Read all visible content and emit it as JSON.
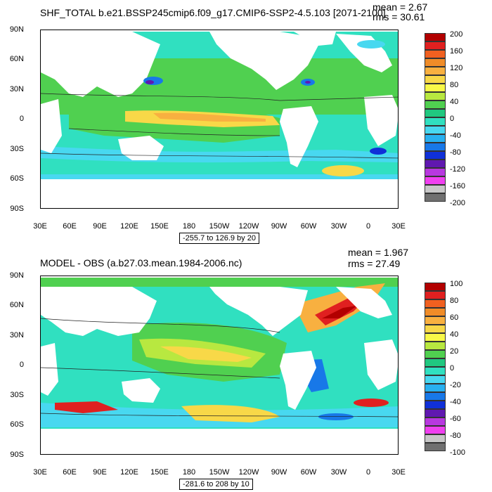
{
  "panels": {
    "top": {
      "title": "SHF_TOTAL b.e21.BSSP245cmip6.f09_g17.CMIP6-SSP2-4.5.103 [2071-2100]",
      "mean_text": "mean = 2.67",
      "rms_text": "rms = 30.61",
      "range_text": "-255.7 to 126.9 by 20",
      "colorbar": {
        "labels": [
          "200",
          "160",
          "120",
          "80",
          "40",
          "0",
          "-40",
          "-80",
          "-120",
          "-160",
          "-200"
        ],
        "colors": [
          "#b20000",
          "#e02020",
          "#f06020",
          "#f08c28",
          "#f8b040",
          "#f8d848",
          "#f8f848",
          "#b8e840",
          "#50d050",
          "#20c880",
          "#30e0c0",
          "#48d8f0",
          "#28b0f0",
          "#1878e8",
          "#1030d8",
          "#6018b0",
          "#b838e0",
          "#f040f0",
          "#c8c8c8",
          "#707070"
        ]
      }
    },
    "bottom": {
      "title": "MODEL - OBS (a.b27.03.mean.1984-2006.nc)",
      "mean_text": "mean = 1.967",
      "rms_text": "rms = 27.49",
      "range_text": "-281.6 to 208 by 10",
      "colorbar": {
        "labels": [
          "100",
          "80",
          "60",
          "40",
          "20",
          "0",
          "-20",
          "-40",
          "-60",
          "-80",
          "-100"
        ],
        "colors": [
          "#b20000",
          "#e02020",
          "#f06020",
          "#f08c28",
          "#f8b040",
          "#f8d848",
          "#f8f848",
          "#b8e840",
          "#50d050",
          "#20c880",
          "#30e0c0",
          "#48d8f0",
          "#28b0f0",
          "#1878e8",
          "#1030d8",
          "#6018b0",
          "#b838e0",
          "#f040f0",
          "#c8c8c8",
          "#707070"
        ]
      }
    }
  },
  "axes": {
    "y_ticks": [
      "90N",
      "60N",
      "30N",
      "0",
      "30S",
      "60S",
      "90S"
    ],
    "x_ticks": [
      "30E",
      "60E",
      "90E",
      "120E",
      "150E",
      "180",
      "150W",
      "120W",
      "90W",
      "60W",
      "30W",
      "0",
      "30E"
    ]
  },
  "colors": {
    "ocean_base": "#50d050",
    "ocean_alt": "#30e0c0",
    "warm": "#f8d848",
    "cool": "#48d8f0",
    "land": "#ffffff"
  },
  "chart_data": [
    {
      "type": "heatmap",
      "title": "SHF_TOTAL b.e21.BSSP245cmip6.f09_g17.CMIP6-SSP2-4.5.103 [2071-2100]",
      "x_range": [
        "30E",
        "30E"
      ],
      "y_range": [
        "90S",
        "90N"
      ],
      "color_range": [
        -200,
        200
      ],
      "contour_interval": 20,
      "mean": 2.67,
      "rms": 30.61,
      "min": -255.7,
      "max": 126.9
    },
    {
      "type": "heatmap",
      "title": "MODEL - OBS (a.b27.03.mean.1984-2006.nc)",
      "x_range": [
        "30E",
        "30E"
      ],
      "y_range": [
        "90S",
        "90N"
      ],
      "color_range": [
        -100,
        100
      ],
      "contour_interval": 10,
      "mean": 1.967,
      "rms": 27.49,
      "min": -281.6,
      "max": 208
    }
  ]
}
